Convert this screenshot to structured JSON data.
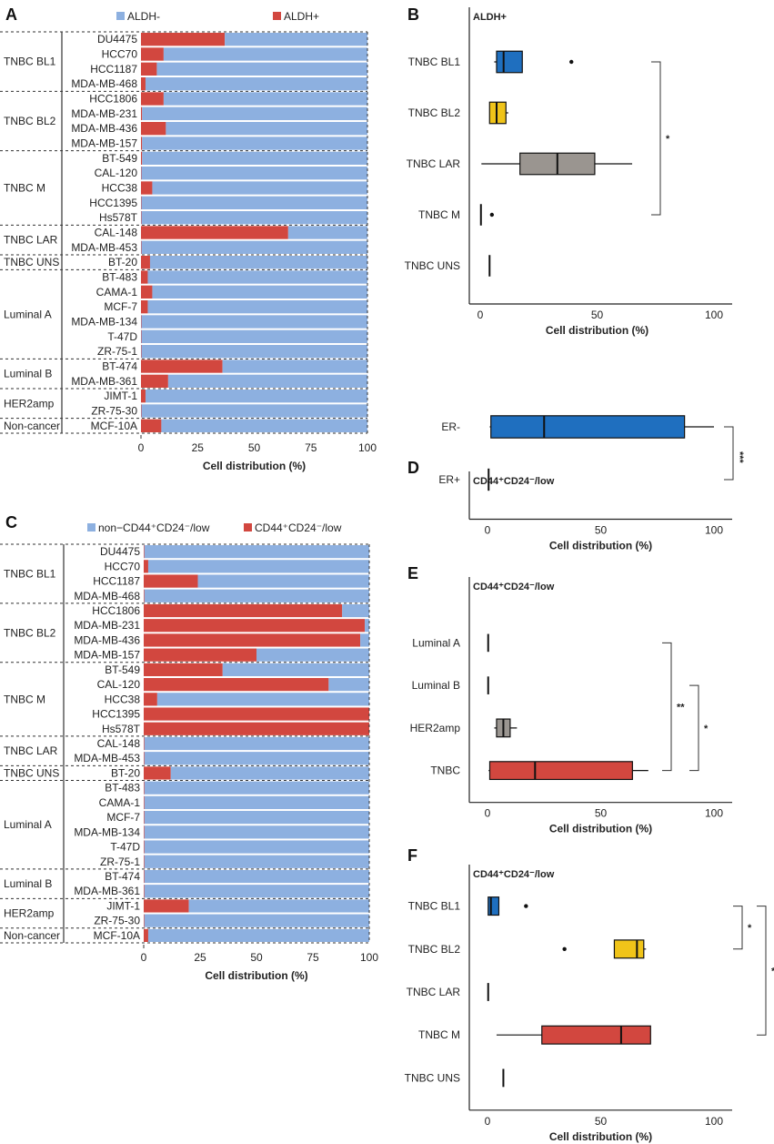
{
  "colors": {
    "neg": "#8db0e0",
    "pos": "#d2473f",
    "blue": "#1f6fbf",
    "yellow": "#f0c419",
    "gray": "#9a9590",
    "red": "#d2473f"
  },
  "panel_letters": [
    "A",
    "B",
    "C",
    "D",
    "E",
    "F"
  ],
  "xlabel": "Cell distribution (%)",
  "groups": [
    {
      "label": "TNBC BL1",
      "lines": [
        "DU4475",
        "HCC70",
        "HCC1187",
        "MDA-MB-468"
      ]
    },
    {
      "label": "TNBC BL2",
      "lines": [
        "HCC1806",
        "MDA-MB-231",
        "MDA-MB-436",
        "MDA-MB-157"
      ]
    },
    {
      "label": "TNBC M",
      "lines": [
        "BT-549",
        "CAL-120",
        "HCC38",
        "HCC1395",
        "Hs578T"
      ]
    },
    {
      "label": "TNBC LAR",
      "lines": [
        "CAL-148",
        "MDA-MB-453"
      ]
    },
    {
      "label": "TNBC UNS",
      "lines": [
        "BT-20"
      ]
    },
    {
      "label": "Luminal A",
      "lines": [
        "BT-483",
        "CAMA-1",
        "MCF-7",
        "MDA-MB-134",
        "T-47D",
        "ZR-75-1"
      ]
    },
    {
      "label": "Luminal B",
      "lines": [
        "BT-474",
        "MDA-MB-361"
      ]
    },
    {
      "label": "HER2amp",
      "lines": [
        "JIMT-1",
        "ZR-75-30"
      ]
    },
    {
      "label": "Non-cancer",
      "lines": [
        "MCF-10A"
      ]
    }
  ],
  "chart_data": [
    {
      "id": "A",
      "type": "bar",
      "stacked": true,
      "orientation": "horizontal",
      "legend": [
        "ALDH-",
        "ALDH+"
      ],
      "xlabel": "Cell distribution (%)",
      "xlim": [
        0,
        100
      ],
      "ticks": [
        0,
        25,
        50,
        75,
        100
      ],
      "categories": [
        "DU4475",
        "HCC70",
        "HCC1187",
        "MDA-MB-468",
        "HCC1806",
        "MDA-MB-231",
        "MDA-MB-436",
        "MDA-MB-157",
        "BT-549",
        "CAL-120",
        "HCC38",
        "HCC1395",
        "Hs578T",
        "CAL-148",
        "MDA-MB-453",
        "BT-20",
        "BT-483",
        "CAMA-1",
        "MCF-7",
        "MDA-MB-134",
        "T-47D",
        "ZR-75-1",
        "BT-474",
        "MDA-MB-361",
        "JIMT-1",
        "ZR-75-30",
        "MCF-10A"
      ],
      "series": [
        {
          "name": "ALDH+",
          "values": [
            37,
            10,
            7,
            2,
            10,
            0.5,
            11,
            0.5,
            0.5,
            0.2,
            5,
            0.2,
            0.2,
            65,
            0.2,
            4,
            3,
            5,
            3,
            0.2,
            0.2,
            0.2,
            36,
            12,
            2,
            0.2,
            9
          ]
        },
        {
          "name": "ALDH-",
          "values": [
            63,
            90,
            93,
            98,
            90,
            99.5,
            89,
            99.5,
            99.5,
            99.8,
            95,
            99.8,
            99.8,
            35,
            99.8,
            96,
            97,
            95,
            97,
            99.8,
            99.8,
            99.8,
            64,
            88,
            98,
            99.8,
            91
          ]
        }
      ]
    },
    {
      "id": "B",
      "type": "box",
      "title": "ALDH+",
      "xlabel": "Cell distribution (%)",
      "xlim": [
        0,
        100
      ],
      "ticks": [
        0,
        50,
        100
      ],
      "boxes": [
        {
          "label": "TNBC BL1",
          "color": "blue",
          "wl": 6,
          "q1": 7,
          "med": 10,
          "q3": 18,
          "wh": 18,
          "out": [
            39
          ]
        },
        {
          "label": "TNBC BL2",
          "color": "yellow",
          "wl": 4,
          "q1": 4,
          "med": 7,
          "q3": 11,
          "wh": 12,
          "out": []
        },
        {
          "label": "TNBC LAR",
          "color": "gray",
          "wl": 0.5,
          "q1": 17,
          "med": 33,
          "q3": 49,
          "wh": 65,
          "out": []
        },
        {
          "label": "TNBC M",
          "color": "gray",
          "wl": 0.3,
          "q1": 0.3,
          "med": 0.3,
          "q3": 0.3,
          "wh": 0.3,
          "out": [
            5
          ]
        },
        {
          "label": "TNBC UNS",
          "color": "gray",
          "wl": 4,
          "q1": 4,
          "med": 4,
          "q3": 4,
          "wh": 4,
          "out": []
        }
      ],
      "sig": [
        {
          "text": "*"
        }
      ]
    },
    {
      "id": "C",
      "type": "bar",
      "stacked": true,
      "orientation": "horizontal",
      "legend": [
        "non−CD44⁺CD24⁻/low",
        "CD44⁺CD24⁻/low"
      ],
      "xlabel": "Cell distribution (%)",
      "xlim": [
        0,
        100
      ],
      "ticks": [
        0,
        25,
        50,
        75,
        100
      ],
      "categories": [
        "DU4475",
        "HCC70",
        "HCC1187",
        "MDA-MB-468",
        "HCC1806",
        "MDA-MB-231",
        "MDA-MB-436",
        "MDA-MB-157",
        "BT-549",
        "CAL-120",
        "HCC38",
        "HCC1395",
        "Hs578T",
        "CAL-148",
        "MDA-MB-453",
        "BT-20",
        "BT-483",
        "CAMA-1",
        "MCF-7",
        "MDA-MB-134",
        "T-47D",
        "ZR-75-1",
        "BT-474",
        "MDA-MB-361",
        "JIMT-1",
        "ZR-75-30",
        "MCF-10A"
      ],
      "series": [
        {
          "name": "CD44⁺CD24⁻/low",
          "values": [
            0.3,
            2,
            24,
            0.3,
            88,
            98,
            96,
            50,
            35,
            82,
            6,
            100,
            100,
            0.3,
            0.3,
            12,
            0.3,
            0.3,
            0.3,
            0.3,
            0.3,
            0.3,
            0.3,
            0.3,
            20,
            0.3,
            2
          ]
        },
        {
          "name": "non−CD44⁺CD24⁻/low",
          "values": [
            99.7,
            98,
            76,
            99.7,
            12,
            2,
            4,
            50,
            65,
            18,
            94,
            0,
            0,
            99.7,
            99.7,
            88,
            99.7,
            99.7,
            99.7,
            99.7,
            99.7,
            99.7,
            99.7,
            99.7,
            80,
            99.7,
            98
          ]
        }
      ]
    },
    {
      "id": "D",
      "type": "box",
      "title": "CD44⁺CD24⁻/low",
      "xlabel": "Cell distribution (%)",
      "xlim": [
        0,
        100
      ],
      "ticks": [
        0,
        50,
        100
      ],
      "boxes": [
        {
          "label": "ER-",
          "color": "blue",
          "wl": 1,
          "q1": 1.5,
          "med": 25,
          "q3": 87,
          "wh": 100,
          "out": []
        },
        {
          "label": "ER+",
          "color": "gray",
          "wl": 0.5,
          "q1": 0.5,
          "med": 0.5,
          "q3": 0.5,
          "wh": 0.5,
          "out": []
        }
      ],
      "sig": [
        {
          "text": "***"
        }
      ]
    },
    {
      "id": "E",
      "type": "box",
      "title": "CD44⁺CD24⁻/low",
      "xlabel": "Cell distribution (%)",
      "xlim": [
        0,
        100
      ],
      "ticks": [
        0,
        50,
        100
      ],
      "boxes": [
        {
          "label": "Luminal A",
          "color": "gray",
          "wl": 0.3,
          "q1": 0.3,
          "med": 0.3,
          "q3": 0.3,
          "wh": 0.3,
          "out": []
        },
        {
          "label": "Luminal B",
          "color": "gray",
          "wl": 0.3,
          "q1": 0.3,
          "med": 0.3,
          "q3": 0.3,
          "wh": 0.3,
          "out": []
        },
        {
          "label": "HER2amp",
          "color": "gray",
          "wl": 3,
          "q1": 4,
          "med": 7,
          "q3": 10,
          "wh": 13,
          "out": []
        },
        {
          "label": "TNBC",
          "color": "red",
          "wl": 0.5,
          "q1": 1,
          "med": 21,
          "q3": 64,
          "wh": 71,
          "out": []
        }
      ],
      "sig": [
        {
          "text": "**"
        },
        {
          "text": "*"
        }
      ]
    },
    {
      "id": "F",
      "type": "box",
      "title": "CD44⁺CD24⁻/low",
      "xlabel": "Cell distribution (%)",
      "xlim": [
        0,
        100
      ],
      "ticks": [
        0,
        50,
        100
      ],
      "boxes": [
        {
          "label": "TNBC BL1",
          "color": "blue",
          "wl": 0.3,
          "q1": 0.3,
          "med": 1.5,
          "q3": 5,
          "wh": 5,
          "out": [
            17
          ]
        },
        {
          "label": "TNBC BL2",
          "color": "yellow",
          "wl": 56,
          "q1": 56,
          "med": 66,
          "q3": 69,
          "wh": 70,
          "out": [
            34
          ]
        },
        {
          "label": "TNBC LAR",
          "color": "gray",
          "wl": 0.3,
          "q1": 0.3,
          "med": 0.3,
          "q3": 0.3,
          "wh": 0.3,
          "out": []
        },
        {
          "label": "TNBC M",
          "color": "red",
          "wl": 4,
          "q1": 24,
          "med": 59,
          "q3": 72,
          "wh": 72,
          "out": []
        },
        {
          "label": "TNBC UNS",
          "color": "gray",
          "wl": 7,
          "q1": 7,
          "med": 7,
          "q3": 7,
          "wh": 7,
          "out": []
        }
      ],
      "sig": [
        {
          "text": "*"
        },
        {
          "text": "*"
        }
      ]
    }
  ]
}
